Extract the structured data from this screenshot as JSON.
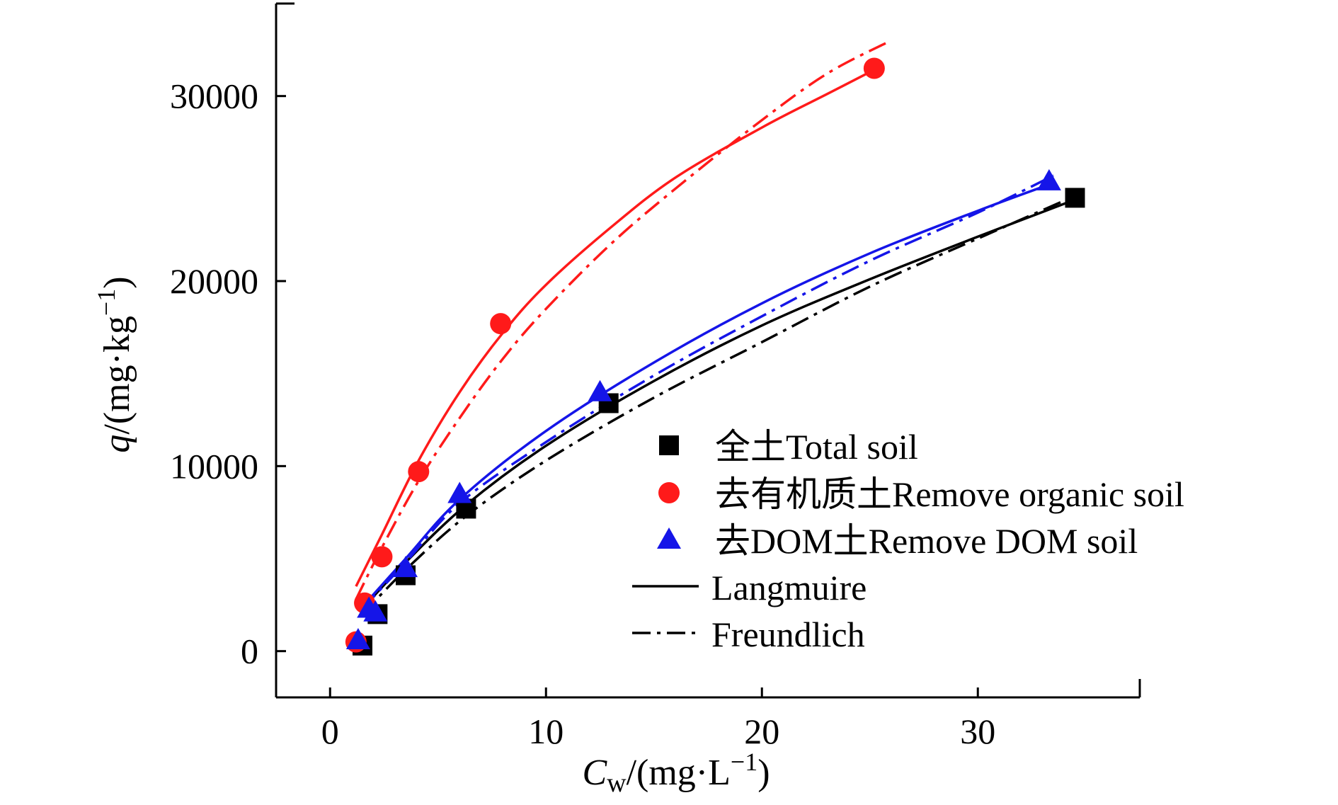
{
  "chart_data": {
    "type": "scatter",
    "x_axis": {
      "label_var": "C",
      "label_sub": "w",
      "label_unit_pre": "/(mg·L",
      "label_unit_sup": "−1",
      "label_unit_post": ")",
      "ticks": [
        0,
        10,
        20,
        30
      ],
      "tick_labels": [
        "0",
        "10",
        "20",
        "30"
      ],
      "range": [
        -2.5,
        37.5
      ]
    },
    "y_axis": {
      "label_var": "q",
      "label_unit_pre": "/(mg·kg",
      "label_unit_sup": "−1",
      "label_unit_post": ")",
      "ticks": [
        0,
        10000,
        20000,
        30000
      ],
      "tick_labels": [
        "0",
        "10000",
        "20000",
        "30000"
      ],
      "range": [
        -2500,
        35000
      ]
    },
    "series": [
      {
        "name": "全土Total soil",
        "marker": "square",
        "color": "#000000",
        "points": [
          [
            1.5,
            300
          ],
          [
            2.2,
            2000
          ],
          [
            3.5,
            4100
          ],
          [
            6.3,
            7700
          ],
          [
            12.9,
            13400
          ],
          [
            34.5,
            24500
          ]
        ],
        "langmuir": [
          [
            1.5,
            2300
          ],
          [
            3.5,
            4800
          ],
          [
            6.3,
            7900
          ],
          [
            10,
            11100
          ],
          [
            15,
            14600
          ],
          [
            20,
            17600
          ],
          [
            25,
            20100
          ],
          [
            30,
            22400
          ],
          [
            34.5,
            24400
          ]
        ],
        "freundlich": [
          [
            1.5,
            2000
          ],
          [
            3.5,
            4400
          ],
          [
            6.3,
            7300
          ],
          [
            10,
            10300
          ],
          [
            15,
            13700
          ],
          [
            20,
            16700
          ],
          [
            25,
            19700
          ],
          [
            30,
            22300
          ],
          [
            34.5,
            24600
          ]
        ]
      },
      {
        "name": "去有机质土Remove organic soil",
        "marker": "circle",
        "color": "#ff1a1a",
        "points": [
          [
            1.2,
            500
          ],
          [
            1.6,
            2600
          ],
          [
            2.4,
            5100
          ],
          [
            4.1,
            9700
          ],
          [
            7.9,
            17700
          ],
          [
            25.2,
            31500
          ]
        ],
        "langmuir": [
          [
            1.2,
            3500
          ],
          [
            2.4,
            6300
          ],
          [
            4.1,
            10300
          ],
          [
            6,
            14000
          ],
          [
            8,
            17200
          ],
          [
            10,
            19800
          ],
          [
            13,
            22900
          ],
          [
            16,
            25600
          ],
          [
            20,
            28300
          ],
          [
            23,
            30100
          ],
          [
            25.5,
            31600
          ]
        ],
        "freundlich": [
          [
            1.2,
            2800
          ],
          [
            2.4,
            5600
          ],
          [
            4.1,
            9200
          ],
          [
            6,
            12600
          ],
          [
            8,
            15800
          ],
          [
            10,
            18500
          ],
          [
            13,
            22000
          ],
          [
            16,
            25000
          ],
          [
            20,
            28700
          ],
          [
            23,
            31200
          ],
          [
            25.8,
            32900
          ]
        ]
      },
      {
        "name": "去DOM土Remove DOM soil",
        "marker": "triangle",
        "color": "#1515e8",
        "points": [
          [
            1.3,
            600
          ],
          [
            1.8,
            2300
          ],
          [
            2.1,
            2100
          ],
          [
            3.5,
            4500
          ],
          [
            6.0,
            8500
          ],
          [
            12.5,
            14000
          ],
          [
            33.3,
            25400
          ]
        ],
        "langmuir": [
          [
            1.5,
            2400
          ],
          [
            3.5,
            5000
          ],
          [
            6,
            8200
          ],
          [
            10,
            11900
          ],
          [
            15,
            15600
          ],
          [
            20,
            18800
          ],
          [
            25,
            21500
          ],
          [
            30,
            23800
          ],
          [
            33.5,
            25300
          ]
        ],
        "freundlich": [
          [
            1.5,
            2300
          ],
          [
            3.5,
            4800
          ],
          [
            6,
            8000
          ],
          [
            10,
            11300
          ],
          [
            15,
            14900
          ],
          [
            20,
            18100
          ],
          [
            25,
            21100
          ],
          [
            30,
            23700
          ],
          [
            33.5,
            25700
          ]
        ]
      }
    ],
    "legend": {
      "placement": "center-right",
      "entries": [
        {
          "marker": "square",
          "color": "#000000",
          "label": "全土Total soil"
        },
        {
          "marker": "circle",
          "color": "#ff1a1a",
          "label": "去有机质土Remove organic soil"
        },
        {
          "marker": "triangle",
          "color": "#1515e8",
          "label": "去DOM土Remove DOM soil"
        },
        {
          "line": "solid",
          "color": "#000000",
          "label": "Langmuire"
        },
        {
          "line": "dashdot",
          "color": "#000000",
          "label": "Freundlich"
        }
      ]
    },
    "grid": false
  }
}
